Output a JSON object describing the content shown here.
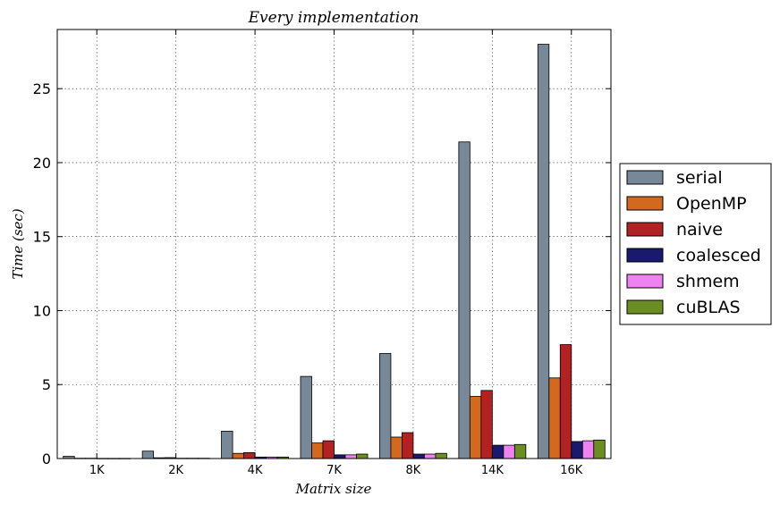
{
  "chart_data": {
    "type": "bar",
    "title": "Every implementation",
    "xlabel": "Matrix size",
    "ylabel": "Time (sec)",
    "categories": [
      "1K",
      "2K",
      "4K",
      "7K",
      "8K",
      "14K",
      "16K"
    ],
    "ylim": [
      0,
      29
    ],
    "yticks": [
      0,
      5,
      10,
      15,
      20,
      25
    ],
    "grid": true,
    "legend_position": "right",
    "series": [
      {
        "name": "serial",
        "color": "#778899",
        "values": [
          0.15,
          0.5,
          1.85,
          5.55,
          7.1,
          21.4,
          28.0
        ]
      },
      {
        "name": "OpenMP",
        "color": "#d2691e",
        "values": [
          0.02,
          0.05,
          0.35,
          1.05,
          1.45,
          4.2,
          5.45
        ]
      },
      {
        "name": "naive",
        "color": "#b22222",
        "values": [
          0.02,
          0.06,
          0.4,
          1.2,
          1.75,
          4.6,
          7.7
        ]
      },
      {
        "name": "coalesced",
        "color": "#191970",
        "values": [
          0.01,
          0.02,
          0.1,
          0.25,
          0.3,
          0.9,
          1.15
        ]
      },
      {
        "name": "shmem",
        "color": "#ee82ee",
        "values": [
          0.01,
          0.02,
          0.1,
          0.25,
          0.3,
          0.9,
          1.2
        ]
      },
      {
        "name": "cuBLAS",
        "color": "#6b8e23",
        "values": [
          0.01,
          0.02,
          0.1,
          0.3,
          0.35,
          0.95,
          1.25
        ]
      }
    ]
  }
}
